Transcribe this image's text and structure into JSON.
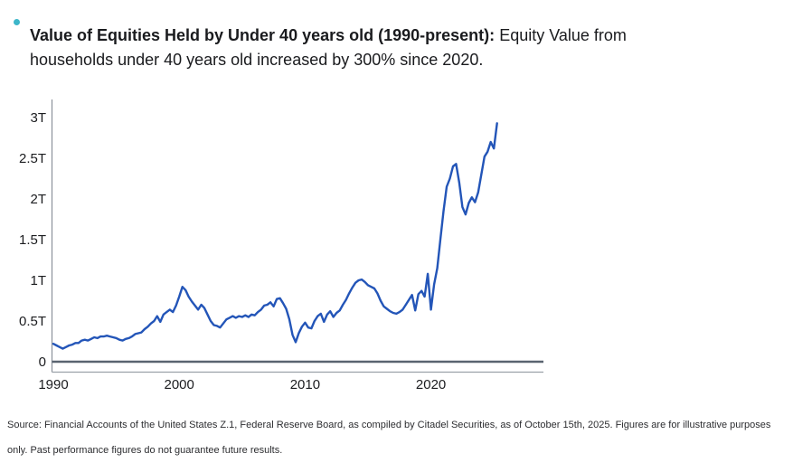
{
  "headline": {
    "title_bold": "Value of Equities Held by Under 40 years old (1990-present):",
    "description": "Equity Value from households under 40 years old increased by 300% since 2020."
  },
  "colors": {
    "bullet": "#3cb6c9",
    "line": "#2355b8",
    "zero_line": "#5a6470",
    "axis": "#9aa1a9",
    "y_axis": "#8b929b",
    "tick_text": "#1b1c1f"
  },
  "chart_data": {
    "type": "line",
    "title": "",
    "xlabel": "",
    "ylabel": "",
    "unit_suffix": "T",
    "x_start": 1990,
    "x_step": 0.25,
    "xlim": [
      1990,
      2028.9
    ],
    "ylim": [
      0,
      3.2
    ],
    "grid": false,
    "legend": "none",
    "x_ticks": [
      {
        "v": 1990,
        "label": "1990"
      },
      {
        "v": 2000,
        "label": "2000"
      },
      {
        "v": 2010,
        "label": "2010"
      },
      {
        "v": 2020,
        "label": "2020"
      }
    ],
    "y_ticks": [
      {
        "v": 0,
        "label": "0"
      },
      {
        "v": 0.5,
        "label": "0.5T"
      },
      {
        "v": 1,
        "label": "1T"
      },
      {
        "v": 1.5,
        "label": "1.5T"
      },
      {
        "v": 2,
        "label": "2T"
      },
      {
        "v": 2.5,
        "label": "2.5T"
      },
      {
        "v": 3,
        "label": "3T"
      }
    ],
    "values": [
      0.22,
      0.2,
      0.18,
      0.16,
      0.18,
      0.2,
      0.21,
      0.23,
      0.23,
      0.26,
      0.27,
      0.26,
      0.28,
      0.3,
      0.29,
      0.31,
      0.31,
      0.32,
      0.31,
      0.3,
      0.29,
      0.27,
      0.26,
      0.28,
      0.29,
      0.31,
      0.34,
      0.35,
      0.36,
      0.4,
      0.43,
      0.47,
      0.5,
      0.56,
      0.49,
      0.58,
      0.61,
      0.64,
      0.61,
      0.69,
      0.8,
      0.92,
      0.88,
      0.8,
      0.74,
      0.69,
      0.64,
      0.7,
      0.66,
      0.58,
      0.5,
      0.45,
      0.44,
      0.42,
      0.47,
      0.52,
      0.54,
      0.56,
      0.54,
      0.56,
      0.55,
      0.57,
      0.55,
      0.58,
      0.57,
      0.61,
      0.64,
      0.69,
      0.7,
      0.73,
      0.68,
      0.77,
      0.78,
      0.72,
      0.65,
      0.52,
      0.33,
      0.24,
      0.35,
      0.43,
      0.48,
      0.42,
      0.41,
      0.5,
      0.56,
      0.59,
      0.49,
      0.58,
      0.62,
      0.55,
      0.6,
      0.63,
      0.7,
      0.76,
      0.84,
      0.91,
      0.97,
      1.0,
      1.01,
      0.98,
      0.94,
      0.92,
      0.9,
      0.84,
      0.75,
      0.68,
      0.65,
      0.62,
      0.6,
      0.59,
      0.61,
      0.64,
      0.7,
      0.76,
      0.82,
      0.63,
      0.83,
      0.87,
      0.8,
      1.08,
      0.64,
      0.95,
      1.15,
      1.5,
      1.85,
      2.15,
      2.25,
      2.4,
      2.43,
      2.2,
      1.9,
      1.81,
      1.95,
      2.02,
      1.96,
      2.08,
      2.3,
      2.52,
      2.58,
      2.7,
      2.62,
      2.93
    ]
  },
  "footer": {
    "source_line1": "Source: Financial Accounts of the United States Z.1, Federal Reserve Board, as compiled by Citadel Securities, as of October 15th, 2025. Figures are for illustrative purposes",
    "source_line2": "only. Past performance figures do not guarantee future results."
  }
}
